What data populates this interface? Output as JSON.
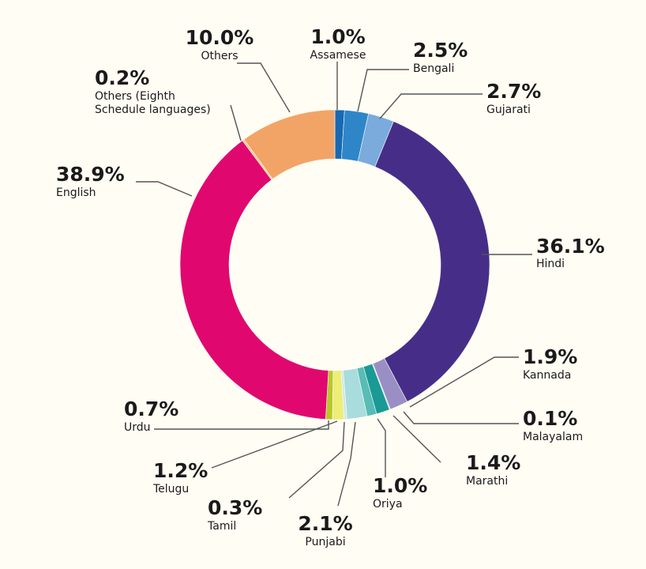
{
  "chart_data": {
    "type": "pie",
    "donut": true,
    "direction": "clockwise",
    "start": "top",
    "slices": [
      {
        "label": "Assamese",
        "pct_label": "1.0%",
        "value": 1.0,
        "color": "#1769b5"
      },
      {
        "label": "Bengali",
        "pct_label": "2.5%",
        "value": 2.5,
        "color": "#2e86c8"
      },
      {
        "label": "Gujarati",
        "pct_label": "2.7%",
        "value": 2.7,
        "color": "#7aabdc"
      },
      {
        "label": "Hindi",
        "pct_label": "36.1%",
        "value": 36.1,
        "color": "#462e88"
      },
      {
        "label": "Kannada",
        "pct_label": "1.9%",
        "value": 1.9,
        "color": "#9a8fc4"
      },
      {
        "label": "Malayalam",
        "pct_label": "0.1%",
        "value": 0.1,
        "color": "#c7d2e8"
      },
      {
        "label": "Marathi",
        "pct_label": "1.4%",
        "value": 1.4,
        "color": "#1a9a95"
      },
      {
        "label": "Oriya",
        "pct_label": "1.0%",
        "value": 1.0,
        "color": "#58bcb7"
      },
      {
        "label": "Punjabi",
        "pct_label": "2.1%",
        "value": 2.1,
        "color": "#a9dcdc"
      },
      {
        "label": "Tamil",
        "pct_label": "0.3%",
        "value": 0.3,
        "color": "#cde7ef"
      },
      {
        "label": "Telugu",
        "pct_label": "1.2%",
        "value": 1.2,
        "color": "#eded78"
      },
      {
        "label": "Urdu",
        "pct_label": "0.7%",
        "value": 0.7,
        "color": "#b7c82a"
      },
      {
        "label": "English",
        "pct_label": "38.9%",
        "value": 38.9,
        "color": "#e0086f"
      },
      {
        "label": "Others (Eighth Schedule languages)",
        "label_lines": [
          "Others (Eighth",
          "Schedule languages)"
        ],
        "pct_label": "0.2%",
        "value": 0.2,
        "color": "#f6c38c"
      },
      {
        "label": "Others",
        "pct_label": "10.0%",
        "value": 10.0,
        "color": "#f2a466"
      }
    ]
  }
}
